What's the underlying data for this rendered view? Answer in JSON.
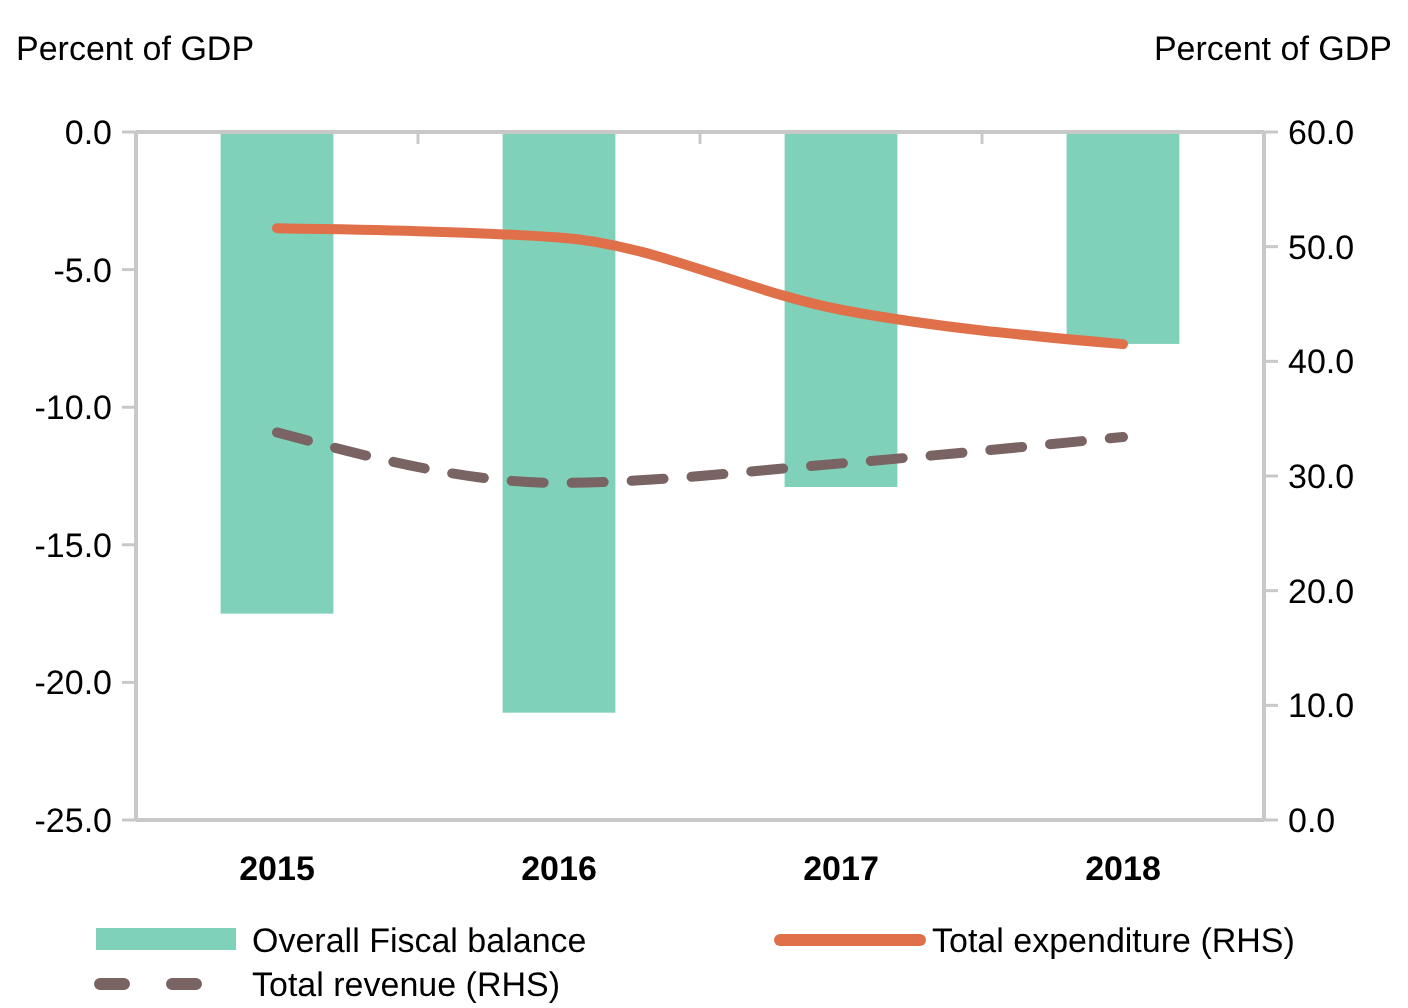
{
  "chart_data": {
    "type": "bar",
    "ylabel": "Percent of GDP",
    "y2label": "Percent of GDP",
    "categories": [
      "2015",
      "2016",
      "2017",
      "2018"
    ],
    "series": [
      {
        "name": "Overall Fiscal balance",
        "color": "#7fd1b9",
        "values": [
          -17.5,
          -21.1,
          -12.9,
          -7.7
        ]
      },
      {
        "name": "Total expenditure (RHS)",
        "type": "line",
        "axis": "y2",
        "color": "#e0704a",
        "line_style": "solid",
        "values": [
          51.6,
          50.8,
          44.5,
          41.5
        ]
      },
      {
        "name": "Total revenue (RHS)",
        "type": "line",
        "axis": "y2",
        "color": "#7a6463",
        "line_style": "dashed",
        "values": [
          33.8,
          29.4,
          31.1,
          33.4
        ]
      }
    ],
    "ylim": [
      -25,
      0
    ],
    "yticks": [
      {
        "value": -25,
        "label": "-25.0"
      },
      {
        "value": -20,
        "label": "-20.0"
      },
      {
        "value": -15,
        "label": "-15.0"
      },
      {
        "value": -10,
        "label": "-10.0"
      },
      {
        "value": -5,
        "label": "-5.0"
      },
      {
        "value": 0,
        "label": "0.0"
      }
    ],
    "y2lim": [
      0,
      60
    ],
    "y2ticks": [
      {
        "value": 0,
        "label": "0.0"
      },
      {
        "value": 10,
        "label": "10.0"
      },
      {
        "value": 20,
        "label": "20.0"
      },
      {
        "value": 30,
        "label": "30.0"
      },
      {
        "value": 40,
        "label": "40.0"
      },
      {
        "value": 50,
        "label": "50.0"
      },
      {
        "value": 60,
        "label": "60.0"
      }
    ],
    "grid": false,
    "legend": "bottom"
  }
}
